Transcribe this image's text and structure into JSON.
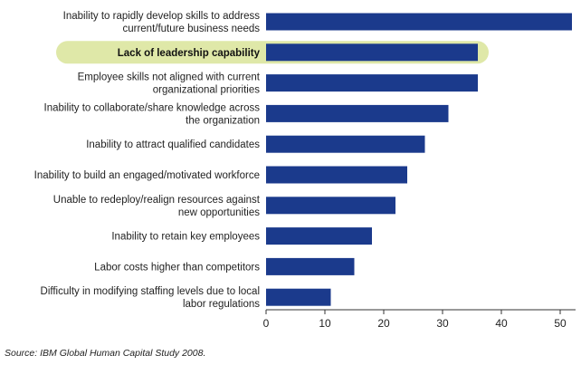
{
  "chart_data": {
    "type": "bar",
    "orientation": "horizontal",
    "categories": [
      [
        "Inability to rapidly develop skills to address",
        "current/future business needs"
      ],
      [
        "Lack of leadership capability"
      ],
      [
        "Employee skills not aligned with current",
        "organizational priorities"
      ],
      [
        "Inability to collaborate/share knowledge across",
        "the organization"
      ],
      [
        "Inability to attract qualified candidates"
      ],
      [
        "Inability to build an engaged/motivated workforce"
      ],
      [
        "Unable to redeploy/realign resources against",
        "new opportunities"
      ],
      [
        "Inability to retain key employees"
      ],
      [
        "Labor costs higher than competitors"
      ],
      [
        "Difficulty in modifying staffing levels due to local",
        "labor regulations"
      ]
    ],
    "values": [
      52,
      36,
      36,
      31,
      27,
      24,
      22,
      18,
      15,
      11
    ],
    "highlighted_index": 1,
    "xlim": [
      0,
      52
    ],
    "xticks": [
      0,
      10,
      20,
      30,
      40,
      50
    ],
    "grid": false,
    "title": "",
    "xlabel": "",
    "ylabel": "",
    "colors": {
      "bar": "#1b3a8c",
      "highlight": "#dfe8a8",
      "axis": "#333333"
    }
  },
  "source": "Source: IBM Global Human Capital Study 2008."
}
